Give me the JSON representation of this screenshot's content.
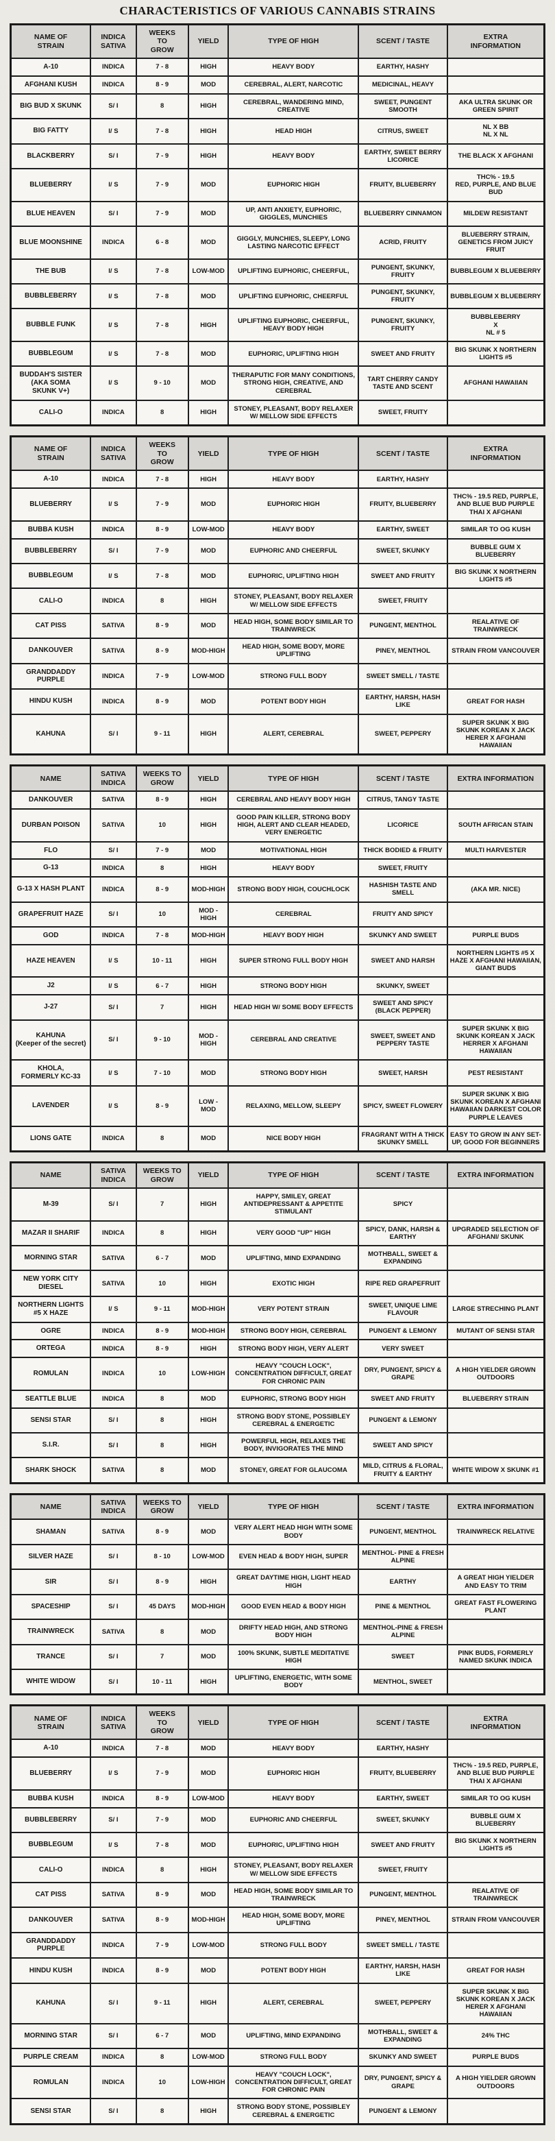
{
  "title": "CHARACTERISTICS OF VARIOUS CANNABIS STRAINS",
  "tables": [
    {
      "headers": [
        "NAME OF\nSTRAIN",
        "INDICA\nSATIVA",
        "WEEKS\nTO\nGROW",
        "YIELD",
        "TYPE OF HIGH",
        "SCENT / TASTE",
        "EXTRA\nINFORMATION"
      ],
      "rows": [
        [
          "A-10",
          "INDICA",
          "7 - 8",
          "HIGH",
          "HEAVY BODY",
          "EARTHY, HASHY",
          ""
        ],
        [
          "AFGHANI KUSH",
          "INDICA",
          "8 - 9",
          "MOD",
          "CEREBRAL, ALERT, NARCOTIC",
          "MEDICINAL, HEAVY",
          ""
        ],
        [
          "BIG BUD X SKUNK",
          "S/ I",
          "8",
          "HIGH",
          "CEREBRAL, WANDERING MIND, CREATIVE",
          "SWEET, PUNGENT SMOOTH",
          "AKA ULTRA SKUNK OR GREEN SPIRIT"
        ],
        [
          "BIG FATTY",
          "I/ S",
          "7 - 8",
          "HIGH",
          "HEAD HIGH",
          "CITRUS, SWEET",
          "NL X BB\nNL X NL"
        ],
        [
          "BLACKBERRY",
          "S/ I",
          "7 - 9",
          "HIGH",
          "HEAVY BODY",
          "EARTHY, SWEET BERRY LICORICE",
          "THE BLACK X AFGHANI"
        ],
        [
          "BLUEBERRY",
          "I/ S",
          "7 - 9",
          "MOD",
          "EUPHORIC HIGH",
          "FRUITY, BLUEBERRY",
          "THC% - 19.5\nRED, PURPLE, AND BLUE BUD"
        ],
        [
          "BLUE HEAVEN",
          "S/ I",
          "7 - 9",
          "MOD",
          "UP, ANTI ANXIETY, EUPHORIC, GIGGLES, MUNCHIES",
          "BLUEBERRY CINNAMON",
          "MILDEW RESISTANT"
        ],
        [
          "BLUE MOONSHINE",
          "INDICA",
          "6 - 8",
          "MOD",
          "GIGGLY, MUNCHIES, SLEEPY, LONG LASTING NARCOTIC EFFECT",
          "ACRID, FRUITY",
          "BLUEBERRY STRAIN, GENETICS FROM JUICY FRUIT"
        ],
        [
          "THE BUB",
          "I/ S",
          "7 - 8",
          "LOW-MOD",
          "UPLIFTING EUPHORIC, CHEERFUL,",
          "PUNGENT, SKUNKY, FRUITY",
          "BUBBLEGUM X BLUEBERRY"
        ],
        [
          "BUBBLEBERRY",
          "I/ S",
          "7 - 8",
          "MOD",
          "UPLIFTING EUPHORIC, CHEERFUL",
          "PUNGENT, SKUNKY, FRUITY",
          "BUBBLEGUM X BLUEBERRY"
        ],
        [
          "BUBBLE FUNK",
          "I/ S",
          "7 - 8",
          "HIGH",
          "UPLIFTING EUPHORIC, CHEERFUL, HEAVY BODY HIGH",
          "PUNGENT, SKUNKY, FRUITY",
          "BUBBLEBERRY\nX\nNL # 5"
        ],
        [
          "BUBBLEGUM",
          "I/ S",
          "7 - 8",
          "MOD",
          "EUPHORIC, UPLIFTING HIGH",
          "SWEET AND FRUITY",
          "BIG SKUNK X NORTHERN LIGHTS #5"
        ],
        [
          "BUDDAH'S SISTER\n(AKA SOMA\nSKUNK V+)",
          "I/ S",
          "9 - 10",
          "MOD",
          "THERAPUTIC FOR MANY CONDITIONS, STRONG HIGH, CREATIVE, AND CEREBRAL",
          "TART CHERRY CANDY TASTE AND SCENT",
          "AFGHANI HAWAIIAN"
        ],
        [
          "CALI-O",
          "INDICA",
          "8",
          "HIGH",
          "STONEY, PLEASANT, BODY RELAXER W/ MELLOW SIDE EFFECTS",
          "SWEET, FRUITY",
          ""
        ]
      ]
    },
    {
      "headers": [
        "NAME OF\nSTRAIN",
        "INDICA\nSATIVA",
        "WEEKS\nTO\nGROW",
        "YIELD",
        "TYPE OF HIGH",
        "SCENT / TASTE",
        "EXTRA\nINFORMATION"
      ],
      "rows": [
        [
          "A-10",
          "INDICA",
          "7 - 8",
          "HIGH",
          "HEAVY BODY",
          "EARTHY, HASHY",
          ""
        ],
        [
          "BLUEBERRY",
          "I/ S",
          "7 - 9",
          "MOD",
          "EUPHORIC HIGH",
          "FRUITY, BLUEBERRY",
          "THC% - 19.5 RED, PURPLE, AND BLUE BUD PURPLE THAI X AFGHANI"
        ],
        [
          "BUBBA KUSH",
          "INDICA",
          "8 - 9",
          "LOW-MOD",
          "HEAVY BODY",
          "EARTHY, SWEET",
          "SIMILAR TO OG KUSH"
        ],
        [
          "BUBBLEBERRY",
          "S/ I",
          "7 - 9",
          "MOD",
          "EUPHORIC AND CHEERFUL",
          "SWEET, SKUNKY",
          "BUBBLE GUM X BLUEBERRY"
        ],
        [
          "BUBBLEGUM",
          "I/ S",
          "7 - 8",
          "MOD",
          "EUPHORIC, UPLIFTING HIGH",
          "SWEET AND FRUITY",
          "BIG SKUNK X NORTHERN LIGHTS #5"
        ],
        [
          "CALI-O",
          "INDICA",
          "8",
          "HIGH",
          "STONEY, PLEASANT, BODY RELAXER W/ MELLOW SIDE EFFECTS",
          "SWEET, FRUITY",
          ""
        ],
        [
          "CAT PISS",
          "SATIVA",
          "8 - 9",
          "MOD",
          "HEAD HIGH, SOME BODY SIMILAR TO TRAINWRECK",
          "PUNGENT, MENTHOL",
          "REALATIVE OF TRAINWRECK"
        ],
        [
          "DANKOUVER",
          "SATIVA",
          "8 - 9",
          "MOD-HIGH",
          "HEAD HIGH, SOME BODY, MORE UPLIFTING",
          "PINEY, MENTHOL",
          "STRAIN FROM VANCOUVER"
        ],
        [
          "GRANDDADDY PURPLE",
          "INDICA",
          "7 - 9",
          "LOW-MOD",
          "STRONG FULL BODY",
          "SWEET SMELL / TASTE",
          ""
        ],
        [
          "HINDU KUSH",
          "INDICA",
          "8 - 9",
          "MOD",
          "POTENT BODY HIGH",
          "EARTHY, HARSH, HASH LIKE",
          "GREAT FOR HASH"
        ],
        [
          "KAHUNA",
          "S/ I",
          "9 - 11",
          "HIGH",
          "ALERT, CEREBRAL",
          "SWEET, PEPPERY",
          "SUPER SKUNK X BIG SKUNK KOREAN X JACK HERER X AFGHANI HAWAIIAN"
        ]
      ]
    },
    {
      "headers": [
        "NAME",
        "SATIVA\nINDICA",
        "WEEKS TO\nGROW",
        "YIELD",
        "TYPE OF HIGH",
        "SCENT / TASTE",
        "EXTRA INFORMATION"
      ],
      "rows": [
        [
          "DANKOUVER",
          "SATIVA",
          "8 - 9",
          "HIGH",
          "CEREBRAL AND HEAVY BODY HIGH",
          "CITRUS, TANGY TASTE",
          ""
        ],
        [
          "DURBAN POISON",
          "SATIVA",
          "10",
          "HIGH",
          "GOOD PAIN KILLER, STRONG BODY HIGH, ALERT AND CLEAR HEADED, VERY ENERGETIC",
          "LICORICE",
          "SOUTH AFRICAN STAIN"
        ],
        [
          "FLO",
          "S/ I",
          "7 - 9",
          "MOD",
          "MOTIVATIONAL HIGH",
          "THICK BODIED & FRUITY",
          "MULTI HARVESTER"
        ],
        [
          "G-13",
          "INDICA",
          "8",
          "HIGH",
          "HEAVY BODY",
          "SWEET, FRUITY",
          ""
        ],
        [
          "G-13 X HASH PLANT",
          "INDICA",
          "8 - 9",
          "MOD-HIGH",
          "STRONG BODY HIGH, COUCHLOCK",
          "HASHISH TASTE AND SMELL",
          "(AKA MR. NICE)"
        ],
        [
          "GRAPEFRUIT HAZE",
          "S/ I",
          "10",
          "MOD - HIGH",
          "CEREBRAL",
          "FRUITY AND SPICY",
          ""
        ],
        [
          "GOD",
          "INDICA",
          "7 - 8",
          "MOD-HIGH",
          "HEAVY BODY HIGH",
          "SKUNKY AND SWEET",
          "PURPLE BUDS"
        ],
        [
          "HAZE HEAVEN",
          "I/ S",
          "10 - 11",
          "HIGH",
          "SUPER STRONG FULL BODY HIGH",
          "SWEET AND HARSH",
          "NORTHERN LIGHTS #5 X HAZE X AFGHANI HAWAIIAN, GIANT BUDS"
        ],
        [
          "J2",
          "I/ S",
          "6 - 7",
          "HIGH",
          "STRONG BODY HIGH",
          "SKUNKY, SWEET",
          ""
        ],
        [
          "J-27",
          "S/ I",
          "7",
          "HIGH",
          "HEAD HIGH W/ SOME BODY EFFECTS",
          "SWEET AND SPICY (BLACK PEPPER)",
          ""
        ],
        [
          "KAHUNA\n(Keeper of the secret)",
          "S/ I",
          "9 - 10",
          "MOD - HIGH",
          "CEREBRAL AND CREATIVE",
          "SWEET, SWEET AND PEPPERY TASTE",
          "SUPER SKUNK X BIG SKUNK KOREAN X JACK HERRER X AFGHANI HAWAIIAN"
        ],
        [
          "KHOLA,\nFORMERLY KC-33",
          "I/ S",
          "7 - 10",
          "MOD",
          "STRONG BODY HIGH",
          "SWEET, HARSH",
          "PEST RESISTANT"
        ],
        [
          "LAVENDER",
          "I/ S",
          "8 - 9",
          "LOW - MOD",
          "RELAXING, MELLOW, SLEEPY",
          "SPICY, SWEET FLOWERY",
          "SUPER SKUNK X BIG SKUNK KOREAN X AFGHANI HAWAIIAN DARKEST COLOR PURPLE LEAVES"
        ],
        [
          "LIONS GATE",
          "INDICA",
          "8",
          "MOD",
          "NICE BODY HIGH",
          "FRAGRANT WITH A THICK SKUNKY SMELL",
          "EASY TO GROW IN ANY SET-UP, GOOD FOR BEGINNERS"
        ]
      ]
    },
    {
      "headers": [
        "NAME",
        "SATIVA\nINDICA",
        "WEEKS TO\nGROW",
        "YIELD",
        "TYPE OF HIGH",
        "SCENT / TASTE",
        "EXTRA INFORMATION"
      ],
      "rows": [
        [
          "M-39",
          "S/ I",
          "7",
          "HIGH",
          "HAPPY, SMILEY, GREAT ANTIDEPRESSANT & APPETITE STIMULANT",
          "SPICY",
          ""
        ],
        [
          "MAZAR II SHARIF",
          "INDICA",
          "8",
          "HIGH",
          "VERY GOOD \"UP\" HIGH",
          "SPICY, DANK, HARSH & EARTHY",
          "UPGRADED SELECTION OF AFGHANI/ SKUNK"
        ],
        [
          "MORNING STAR",
          "SATIVA",
          "6 - 7",
          "MOD",
          "UPLIFTING, MIND EXPANDING",
          "MOTHBALL, SWEET & EXPANDING",
          ""
        ],
        [
          "NEW YORK CITY DIESEL",
          "SATIVA",
          "10",
          "HIGH",
          "EXOTIC HIGH",
          "RIPE RED GRAPEFRUIT",
          ""
        ],
        [
          "NORTHERN LIGHTS #5 X HAZE",
          "I/ S",
          "9 - 11",
          "MOD-HIGH",
          "VERY POTENT STRAIN",
          "SWEET, UNIQUE LIME FLAVOUR",
          "LARGE STRECHING PLANT"
        ],
        [
          "OGRE",
          "INDICA",
          "8 - 9",
          "MOD-HIGH",
          "STRONG BODY HIGH, CEREBRAL",
          "PUNGENT & LEMONY",
          "MUTANT OF SENSI STAR"
        ],
        [
          "ORTEGA",
          "INDICA",
          "8 - 9",
          "HIGH",
          "STRONG BODY HIGH, VERY ALERT",
          "VERY SWEET",
          ""
        ],
        [
          "ROMULAN",
          "INDICA",
          "10",
          "LOW-HIGH",
          "HEAVY \"COUCH LOCK\", CONCENTRATION DIFFICULT, GREAT FOR CHRONIC PAIN",
          "DRY, PUNGENT, SPICY & GRAPE",
          "A HIGH YIELDER GROWN OUTDOORS"
        ],
        [
          "SEATTLE BLUE",
          "INDICA",
          "8",
          "MOD",
          "EUPHORIC, STRONG BODY HIGH",
          "SWEET AND FRUITY",
          "BLUEBERRY STRAIN"
        ],
        [
          "SENSI STAR",
          "S/ I",
          "8",
          "HIGH",
          "STRONG BODY STONE, POSSIBLEY CEREBRAL & ENERGETIC",
          "PUNGENT & LEMONY",
          ""
        ],
        [
          "S.I.R.",
          "S/ I",
          "8",
          "HIGH",
          "POWERFUL HIGH, RELAXES THE BODY, INVIGORATES THE MIND",
          "SWEET AND SPICY",
          ""
        ],
        [
          "SHARK SHOCK",
          "SATIVA",
          "8",
          "MOD",
          "STONEY, GREAT FOR GLAUCOMA",
          "MILD, CITRUS & FLORAL,\nFRUITY & EARTHY",
          "WHITE WIDOW X SKUNK #1"
        ]
      ]
    },
    {
      "headers": [
        "NAME",
        "SATIVA\nINDICA",
        "WEEKS TO\nGROW",
        "YIELD",
        "TYPE OF HIGH",
        "SCENT / TASTE",
        "EXTRA INFORMATION"
      ],
      "rows": [
        [
          "SHAMAN",
          "SATIVA",
          "8 - 9",
          "MOD",
          "VERY ALERT HEAD HIGH WITH SOME BODY",
          "PUNGENT, MENTHOL",
          "TRAINWRECK RELATIVE"
        ],
        [
          "SILVER HAZE",
          "S/ I",
          "8 - 10",
          "LOW-MOD",
          "EVEN HEAD & BODY HIGH, SUPER",
          "MENTHOL- PINE & FRESH ALPINE",
          ""
        ],
        [
          "SIR",
          "S/ I",
          "8 - 9",
          "HIGH",
          "GREAT DAYTIME HIGH, LIGHT HEAD HIGH",
          "EARTHY",
          "A GREAT HIGH YIELDER AND EASY TO TRIM"
        ],
        [
          "SPACESHIP",
          "S/ I",
          "45 DAYS",
          "MOD-HIGH",
          "GOOD EVEN HEAD & BODY HIGH",
          "PINE & MENTHOL",
          "GREAT FAST FLOWERING PLANT"
        ],
        [
          "TRAINWRECK",
          "SATIVA",
          "8",
          "MOD",
          "DRIFTY HEAD HIGH, AND STRONG BODY HIGH",
          "MENTHOL-PINE & FRESH ALPINE",
          ""
        ],
        [
          "TRANCE",
          "S/ I",
          "7",
          "MOD",
          "100% SKUNK, SUBTLE MEDITATIVE HIGH",
          "SWEET",
          "PINK BUDS, FORMERLY NAMED SKUNK INDICA"
        ],
        [
          "WHITE WIDOW",
          "S/ I",
          "10 - 11",
          "HIGH",
          "UPLIFTING, ENERGETIC, WITH SOME BODY",
          "MENTHOL, SWEET",
          ""
        ]
      ]
    },
    {
      "headers": [
        "NAME OF\nSTRAIN",
        "INDICA\nSATIVA",
        "WEEKS\nTO\nGROW",
        "YIELD",
        "TYPE OF HIGH",
        "SCENT / TASTE",
        "EXTRA\nINFORMATION"
      ],
      "rows": [
        [
          "A-10",
          "INDICA",
          "7 - 8",
          "MOD",
          "HEAVY BODY",
          "EARTHY, HASHY",
          ""
        ],
        [
          "BLUEBERRY",
          "I/ S",
          "7 - 9",
          "MOD",
          "EUPHORIC HIGH",
          "FRUITY, BLUEBERRY",
          "THC% - 19.5 RED, PURPLE, AND BLUE BUD PURPLE THAI X AFGHANI"
        ],
        [
          "BUBBA KUSH",
          "INDICA",
          "8 - 9",
          "LOW-MOD",
          "HEAVY BODY",
          "EARTHY, SWEET",
          "SIMILAR TO OG KUSH"
        ],
        [
          "BUBBLEBERRY",
          "S/ I",
          "7 - 9",
          "MOD",
          "EUPHORIC AND CHEERFUL",
          "SWEET, SKUNKY",
          "BUBBLE GUM X BLUEBERRY"
        ],
        [
          "BUBBLEGUM",
          "I/ S",
          "7 - 8",
          "MOD",
          "EUPHORIC, UPLIFTING HIGH",
          "SWEET AND FRUITY",
          "BIG SKUNK X NORTHERN LIGHTS #5"
        ],
        [
          "CALI-O",
          "INDICA",
          "8",
          "HIGH",
          "STONEY, PLEASANT, BODY RELAXER W/ MELLOW SIDE EFFECTS",
          "SWEET, FRUITY",
          ""
        ],
        [
          "CAT PISS",
          "SATIVA",
          "8 - 9",
          "MOD",
          "HEAD HIGH, SOME BODY SIMILAR TO TRAINWRECK",
          "PUNGENT, MENTHOL",
          "REALATIVE OF TRAINWRECK"
        ],
        [
          "DANKOUVER",
          "SATIVA",
          "8 - 9",
          "MOD-HIGH",
          "HEAD HIGH, SOME BODY, MORE UPLIFTING",
          "PINEY, MENTHOL",
          "STRAIN FROM VANCOUVER"
        ],
        [
          "GRANDDADDY PURPLE",
          "INDICA",
          "7 - 9",
          "LOW-MOD",
          "STRONG FULL BODY",
          "SWEET SMELL / TASTE",
          ""
        ],
        [
          "HINDU KUSH",
          "INDICA",
          "8 - 9",
          "MOD",
          "POTENT BODY HIGH",
          "EARTHY, HARSH, HASH LIKE",
          "GREAT FOR HASH"
        ],
        [
          "KAHUNA",
          "S/ I",
          "9 - 11",
          "HIGH",
          "ALERT, CEREBRAL",
          "SWEET, PEPPERY",
          "SUPER SKUNK X BIG SKUNK KOREAN X JACK HERER X AFGHANI HAWAIIAN"
        ],
        [
          "MORNING STAR",
          "S/ I",
          "6 - 7",
          "MOD",
          "UPLIFTING, MIND EXPANDING",
          "MOTHBALL, SWEET & EXPANDING",
          "24% THC"
        ],
        [
          "PURPLE CREAM",
          "INDICA",
          "8",
          "LOW-MOD",
          "STRONG FULL BODY",
          "SKUNKY AND SWEET",
          "PURPLE BUDS"
        ],
        [
          "ROMULAN",
          "INDICA",
          "10",
          "LOW-HIGH",
          "HEAVY \"COUCH LOCK\", CONCENTRATION DIFFICULT, GREAT FOR CHRONIC PAIN",
          "DRY, PUNGENT, SPICY & GRAPE",
          "A HIGH YIELDER GROWN OUTDOORS"
        ],
        [
          "SENSI STAR",
          "S/ I",
          "8",
          "HIGH",
          "STRONG BODY STONE, POSSIBLEY CEREBRAL & ENERGETIC",
          "PUNGENT & LEMONY",
          ""
        ]
      ]
    }
  ]
}
